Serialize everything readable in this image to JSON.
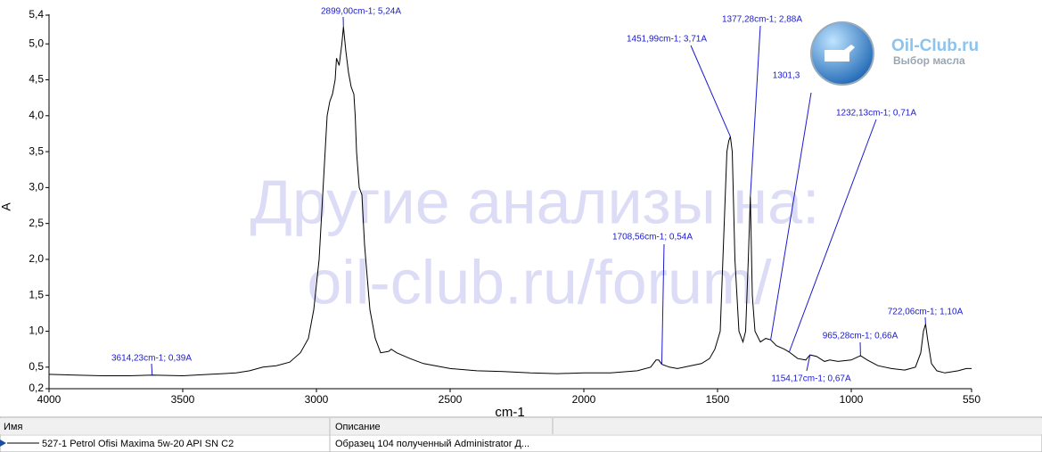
{
  "chart_data": {
    "type": "line",
    "x_label": "cm-1",
    "y_label": "A",
    "color": "#000000",
    "annotation_color": "#1a1ad0",
    "xlim": [
      4000,
      550
    ],
    "xticks": [
      4000,
      3500,
      3000,
      2500,
      2000,
      1500,
      1000,
      550
    ],
    "ylim": [
      0.2,
      5.4
    ],
    "yticks": [
      {
        "value": 0.2,
        "label": "0,2"
      },
      {
        "value": 0.5,
        "label": "0,5"
      },
      {
        "value": 1.0,
        "label": "1,0"
      },
      {
        "value": 1.5,
        "label": "1,5"
      },
      {
        "value": 2.0,
        "label": "2,0"
      },
      {
        "value": 2.5,
        "label": "2,5"
      },
      {
        "value": 3.0,
        "label": "3,0"
      },
      {
        "value": 3.5,
        "label": "3,5"
      },
      {
        "value": 4.0,
        "label": "4,0"
      },
      {
        "value": 4.5,
        "label": "4,5"
      },
      {
        "value": 5.0,
        "label": "5,0"
      },
      {
        "value": 5.4,
        "label": "5,4"
      }
    ],
    "x": [
      4000,
      3900,
      3800,
      3700,
      3614.23,
      3500,
      3400,
      3300,
      3250,
      3200,
      3150,
      3100,
      3060,
      3030,
      3010,
      2990,
      2975,
      2960,
      2950,
      2940,
      2930,
      2925,
      2915,
      2905,
      2899,
      2890,
      2880,
      2870,
      2860,
      2855,
      2850,
      2840,
      2830,
      2820,
      2800,
      2780,
      2760,
      2730,
      2720,
      2700,
      2650,
      2600,
      2500,
      2400,
      2300,
      2200,
      2100,
      2000,
      1900,
      1800,
      1750,
      1730,
      1720,
      1708.56,
      1680,
      1650,
      1600,
      1560,
      1530,
      1510,
      1490,
      1475,
      1465,
      1458,
      1451.99,
      1445,
      1435,
      1420,
      1405,
      1395,
      1385,
      1377.28,
      1370,
      1360,
      1340,
      1320,
      1301.3,
      1280,
      1250,
      1232.13,
      1200,
      1170,
      1154.17,
      1130,
      1100,
      1080,
      1050,
      1000,
      965.28,
      940,
      900,
      850,
      800,
      760,
      740,
      730,
      722.06,
      715,
      700,
      680,
      650,
      600,
      570,
      550
    ],
    "values": [
      0.4,
      0.39,
      0.38,
      0.38,
      0.39,
      0.38,
      0.4,
      0.42,
      0.45,
      0.5,
      0.52,
      0.57,
      0.7,
      0.9,
      1.3,
      2.0,
      3.0,
      4.0,
      4.2,
      4.3,
      4.5,
      4.8,
      4.7,
      5.0,
      5.24,
      4.9,
      4.6,
      4.4,
      4.3,
      4.0,
      3.5,
      3.0,
      2.9,
      2.2,
      1.3,
      0.9,
      0.7,
      0.72,
      0.75,
      0.7,
      0.62,
      0.55,
      0.48,
      0.45,
      0.44,
      0.42,
      0.41,
      0.42,
      0.42,
      0.45,
      0.5,
      0.6,
      0.6,
      0.54,
      0.5,
      0.48,
      0.52,
      0.55,
      0.62,
      0.75,
      1.0,
      2.5,
      3.5,
      3.65,
      3.71,
      3.5,
      2.0,
      1.0,
      0.85,
      1.0,
      2.0,
      2.88,
      1.5,
      1.0,
      0.85,
      0.9,
      0.88,
      0.8,
      0.75,
      0.71,
      0.62,
      0.6,
      0.67,
      0.65,
      0.58,
      0.6,
      0.58,
      0.6,
      0.66,
      0.6,
      0.52,
      0.48,
      0.46,
      0.5,
      0.7,
      1.0,
      1.1,
      0.9,
      0.55,
      0.45,
      0.42,
      0.45,
      0.48,
      0.48
    ],
    "annotations": [
      {
        "text": "2899,00cm-1; 5,24A",
        "x": 2899,
        "y": 5.24
      },
      {
        "text": "1451,99cm-1; 3,71A",
        "x": 1451.99,
        "y": 3.71
      },
      {
        "text": "1377,28cm-1; 2,88A",
        "x": 1377.28,
        "y": 2.88
      },
      {
        "text": "1301,3",
        "x": 1301.3,
        "y": 0.88
      },
      {
        "text": "1232,13cm-1; 0,71A",
        "x": 1232.13,
        "y": 0.71
      },
      {
        "text": "1708,56cm-1; 0,54A",
        "x": 1708.56,
        "y": 0.54
      },
      {
        "text": "3614,23cm-1; 0,39A",
        "x": 3614.23,
        "y": 0.39
      },
      {
        "text": "722,06cm-1; 1,10A",
        "x": 722.06,
        "y": 1.1
      },
      {
        "text": "965,28cm-1; 0,66A",
        "x": 965.28,
        "y": 0.66
      },
      {
        "text": "1154,17cm-1; 0,67A",
        "x": 1154.17,
        "y": 0.67
      }
    ]
  },
  "watermark": [
    "Другие анализы на:",
    "oil-club.ru/forum/"
  ],
  "logo": {
    "title": "Oil-Club.ru",
    "subtitle": "Выбор масла"
  },
  "table": {
    "columns": [
      "Имя",
      "Описание"
    ],
    "rows": [
      [
        "527-1 Petrol Ofisi Maxima 5w-20 API SN C2",
        "Образец 104 полученный Administrator Д..."
      ]
    ]
  }
}
